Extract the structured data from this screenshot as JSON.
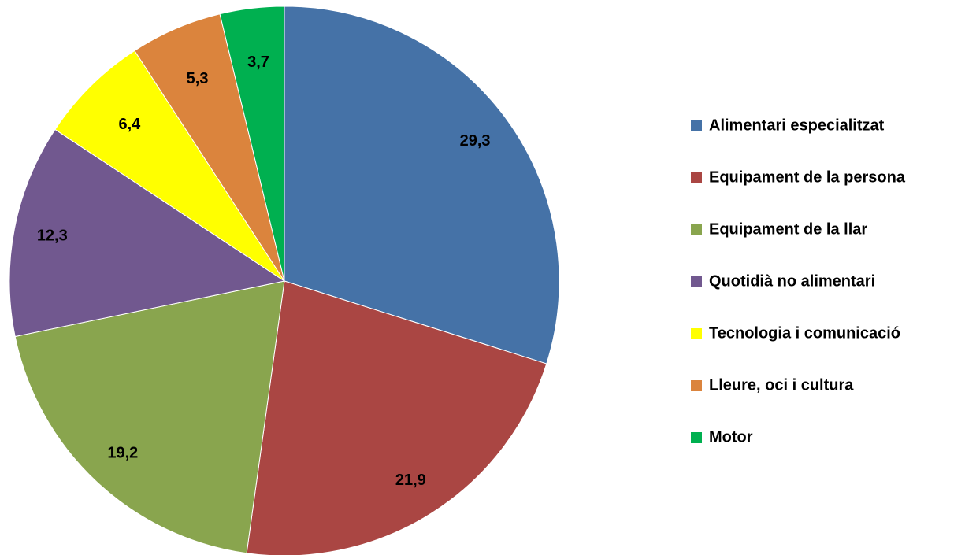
{
  "chart_data": {
    "type": "pie",
    "categories": [
      "Alimentari especialitzat",
      "Equipament de la persona",
      "Equipament de la llar",
      "Quotidià no alimentari",
      "Tecnologia i comunicació",
      "Lleure, oci i cultura",
      "Motor"
    ],
    "values": [
      29.3,
      21.9,
      19.2,
      12.3,
      6.4,
      5.3,
      3.7
    ],
    "value_labels": [
      "29,3",
      "21,9",
      "19,2",
      "12,3",
      "6,4",
      "5,3",
      "3,7"
    ],
    "colors": [
      "#4572a7",
      "#aa4643",
      "#89a54e",
      "#71588f",
      "#ffff00",
      "#db843d",
      "#00b050"
    ],
    "legend": "right"
  }
}
